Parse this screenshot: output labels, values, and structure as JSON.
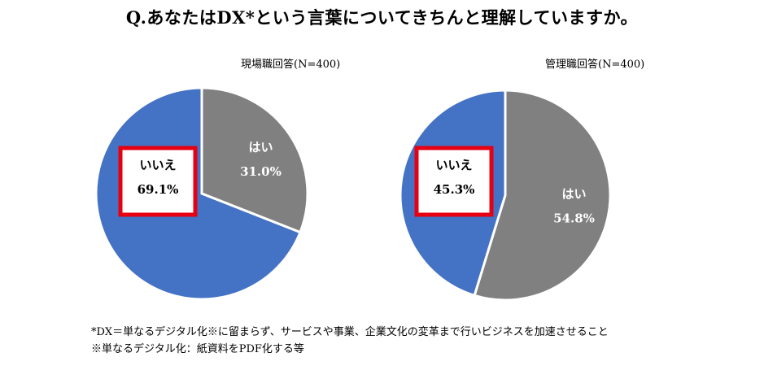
{
  "title": "Q.あなたはDX*という言葉についてきちんと理解していますか。",
  "chart_data": [
    {
      "type": "pie",
      "title": "現場職回答(N=400)",
      "slices": [
        {
          "label": "はい",
          "value": 31.0,
          "value_label": "31.0%",
          "color": "#808080"
        },
        {
          "label": "いいえ",
          "value": 69.1,
          "value_label": "69.1%",
          "color": "#4472c4",
          "highlighted": true
        },
        {
          "label": "",
          "value": 0,
          "color": "#7f96d2"
        }
      ],
      "other_color": "#7f96d2",
      "start": "12 o'clock",
      "direction": "clockwise",
      "highlight_color": "#e60012"
    },
    {
      "type": "pie",
      "title": "管理職回答(N=400)",
      "slices": [
        {
          "label": "はい",
          "value": 54.8,
          "value_label": "54.8%",
          "color": "#808080"
        },
        {
          "label": "いいえ",
          "value": 45.3,
          "value_label": "45.3%",
          "color": "#4472c4",
          "highlighted": true
        },
        {
          "label": "",
          "value": 0,
          "color": "#a8b8de"
        }
      ],
      "other_color": "#a8b8de",
      "start": "12 o'clock",
      "direction": "clockwise",
      "highlight_color": "#e60012"
    }
  ],
  "footnotes": [
    "*DX＝単なるデジタル化※に留まらず、サービスや事業、企業文化の変革まで行いビジネスを加速させること",
    "※単なるデジタル化：紙資料をPDF化する等"
  ]
}
